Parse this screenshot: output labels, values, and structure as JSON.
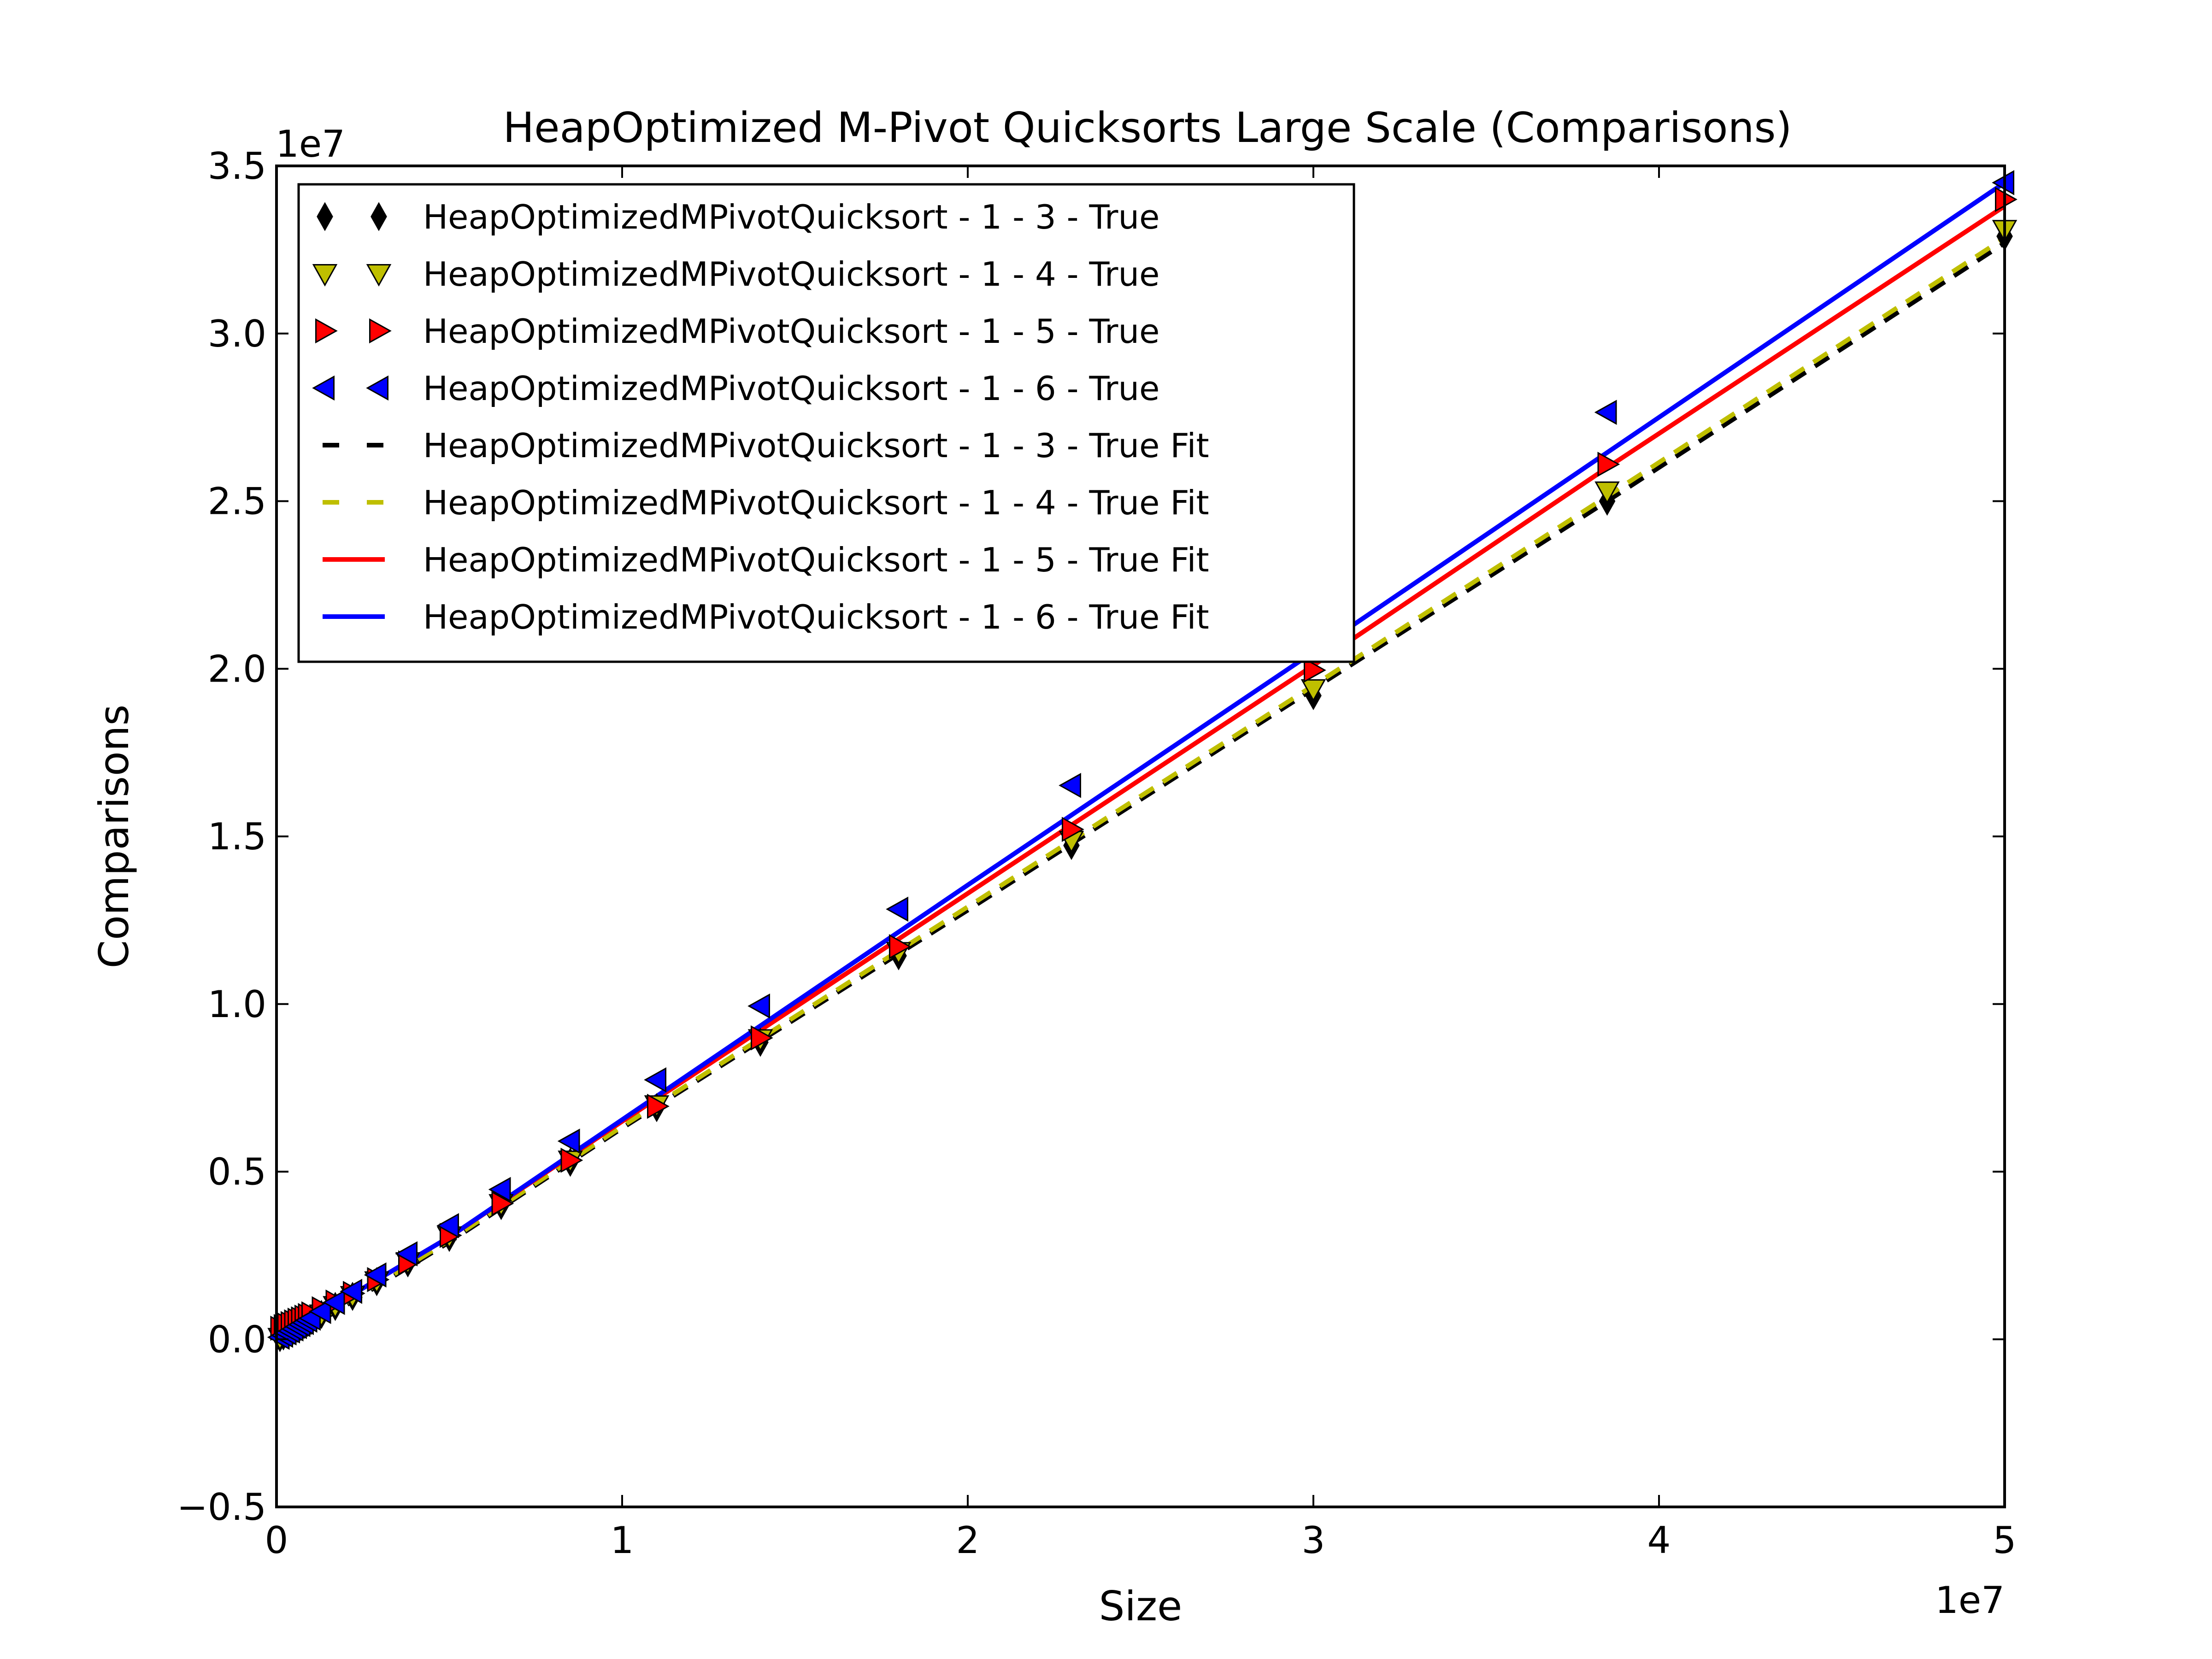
{
  "chart_data": {
    "type": "scatter",
    "title": "HeapOptimized M-Pivot Quicksorts Large Scale (Comparisons)",
    "xlabel": "Size",
    "ylabel": "Comparisons",
    "x_offset_label": "1e7",
    "y_offset_label": "1e7",
    "x_scale": 10000000,
    "y_scale": 10000000,
    "xlim": [
      0,
      50000000
    ],
    "ylim": [
      -5000000,
      35000000
    ],
    "x_ticks": [
      0,
      10000000,
      20000000,
      30000000,
      40000000,
      50000000
    ],
    "x_tick_labels": [
      "0",
      "1",
      "2",
      "3",
      "4",
      "5"
    ],
    "y_ticks": [
      -5000000,
      0,
      5000000,
      10000000,
      15000000,
      20000000,
      25000000,
      30000000,
      35000000
    ],
    "y_tick_labels": [
      "−0.5",
      "0.0",
      "0.5",
      "1.0",
      "1.5",
      "2.0",
      "2.5",
      "3.0",
      "3.5"
    ],
    "grid": false,
    "legend_position": "top-left",
    "x": [
      100000,
      200000,
      300000,
      400000,
      500000,
      600000,
      700000,
      800000,
      900000,
      1000000,
      1300000,
      1700000,
      2200000,
      2900000,
      3800000,
      5000000,
      6500000,
      8500000,
      11000000,
      14000000,
      18000000,
      23000000,
      30000000,
      38500000,
      50000000
    ],
    "series": [
      {
        "name": "HeapOptimizedMPivotQuicksort - 1 - 3 - True",
        "marker": "diamond",
        "color": "#000000",
        "values": [
          50000,
          100000,
          160000,
          220000,
          270000,
          330000,
          380000,
          440000,
          500000,
          560000,
          740000,
          980000,
          1280000,
          1720000,
          2280000,
          3040000,
          3990000,
          5280000,
          6910000,
          8860000,
          11440000,
          14730000,
          19200000,
          25000000,
          32900000
        ]
      },
      {
        "name": "HeapOptimizedMPivotQuicksort - 1 - 4 - True",
        "marker": "triangle-down",
        "color": "#bfbf00",
        "values": [
          50000,
          110000,
          170000,
          220000,
          280000,
          340000,
          390000,
          450000,
          510000,
          570000,
          750000,
          1000000,
          1300000,
          1740000,
          2310000,
          3080000,
          4040000,
          5340000,
          6990000,
          8960000,
          11560000,
          14880000,
          19400000,
          25300000,
          33100000
        ]
      },
      {
        "name": "HeapOptimizedMPivotQuicksort - 1 - 5 - True",
        "marker": "triangle-right",
        "color": "#ff0000",
        "values": [
          330000,
          380000,
          430000,
          470000,
          520000,
          570000,
          610000,
          660000,
          710000,
          760000,
          910000,
          1110000,
          1370000,
          1780000,
          2280000,
          3100000,
          4050000,
          5340000,
          6950000,
          8990000,
          11710000,
          15210000,
          19960000,
          26100000,
          34000000
        ]
      },
      {
        "name": "HeapOptimizedMPivotQuicksort - 1 - 6 - True",
        "marker": "triangle-left",
        "color": "#0000ff",
        "values": [
          60000,
          120000,
          190000,
          250000,
          310000,
          380000,
          440000,
          500000,
          570000,
          630000,
          830000,
          1100000,
          1430000,
          1920000,
          2550000,
          3390000,
          4470000,
          5910000,
          7740000,
          9940000,
          12830000,
          16520000,
          21620000,
          27650000,
          34500000
        ]
      }
    ],
    "fits": [
      {
        "name": "HeapOptimizedMPivotQuicksort - 1 - 3 - True Fit",
        "color": "#000000",
        "dash": "dashed",
        "x": [
          0,
          5000000,
          10000000,
          20000000,
          30000000,
          38500000,
          50000000
        ],
        "values": [
          -250000,
          2900000,
          6300000,
          12800000,
          19400000,
          25000000,
          32700000
        ]
      },
      {
        "name": "HeapOptimizedMPivotQuicksort - 1 - 4 - True Fit",
        "color": "#bfbf00",
        "dash": "dashed",
        "x": [
          0,
          5000000,
          10000000,
          20000000,
          30000000,
          38500000,
          50000000
        ],
        "values": [
          -200000,
          2950000,
          6350000,
          12900000,
          19500000,
          25150000,
          32850000
        ]
      },
      {
        "name": "HeapOptimizedMPivotQuicksort - 1 - 5 - True Fit",
        "color": "#ff0000",
        "dash": "solid",
        "x": [
          0,
          5000000,
          10000000,
          20000000,
          30000000,
          38500000,
          50000000
        ],
        "values": [
          0,
          3050000,
          6500000,
          13300000,
          20100000,
          26000000,
          33800000
        ]
      },
      {
        "name": "HeapOptimizedMPivotQuicksort - 1 - 6 - True Fit",
        "color": "#0000ff",
        "dash": "solid",
        "x": [
          0,
          5000000,
          10000000,
          20000000,
          30000000,
          38500000,
          50000000
        ],
        "values": [
          0,
          3050000,
          6550000,
          13550000,
          20500000,
          26450000,
          34500000
        ]
      }
    ]
  }
}
